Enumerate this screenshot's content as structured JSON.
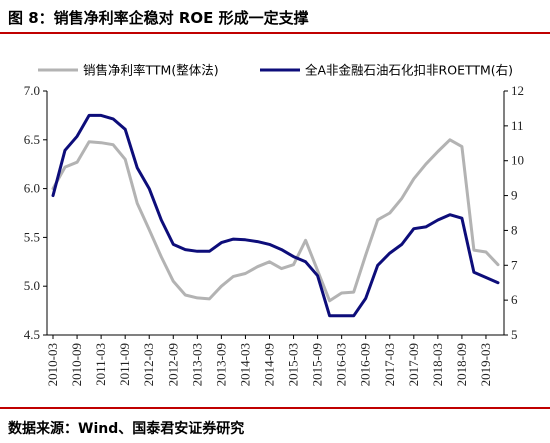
{
  "page": {
    "title": "图 8：销售净利率企稳对 ROE 形成一定支撑",
    "source": "数据来源：Wind、国泰君安证券研究"
  },
  "chart_data": {
    "type": "line",
    "title": "图 8：销售净利率企稳对 ROE 形成一定支撑",
    "xlabel": "",
    "ylabel": "",
    "x": [
      "2010-03",
      "2010-06",
      "2010-09",
      "2010-12",
      "2011-03",
      "2011-06",
      "2011-09",
      "2011-12",
      "2012-03",
      "2012-06",
      "2012-09",
      "2012-12",
      "2013-03",
      "2013-06",
      "2013-09",
      "2013-12",
      "2014-03",
      "2014-06",
      "2014-09",
      "2014-12",
      "2015-03",
      "2015-06",
      "2015-09",
      "2015-12",
      "2016-03",
      "2016-06",
      "2016-09",
      "2016-12",
      "2017-03",
      "2017-06",
      "2017-09",
      "2017-12",
      "2018-03",
      "2018-06",
      "2018-09",
      "2018-12",
      "2019-03",
      "2019-06"
    ],
    "x_tick_labels": [
      "2010-03",
      "2010-09",
      "2011-03",
      "2011-09",
      "2012-03",
      "2012-09",
      "2013-03",
      "2013-09",
      "2014-03",
      "2014-09",
      "2015-03",
      "2015-09",
      "2016-03",
      "2016-09",
      "2017-03",
      "2017-09",
      "2018-03",
      "2018-09",
      "2019-03"
    ],
    "ylim_left": [
      4.5,
      7.0
    ],
    "yticks_left": [
      "4.5",
      "5.0",
      "5.5",
      "6.0",
      "6.5",
      "7.0"
    ],
    "ylim_right": [
      5,
      12
    ],
    "yticks_right": [
      "5",
      "6",
      "7",
      "8",
      "9",
      "10",
      "11",
      "12"
    ],
    "grid": false,
    "legend_position": "top",
    "series": [
      {
        "name": "销售净利率TTM(整体法)",
        "axis": "left",
        "color": "#b3b3b3",
        "values": [
          6.0,
          6.22,
          6.27,
          6.48,
          6.47,
          6.45,
          6.3,
          5.85,
          5.58,
          5.3,
          5.05,
          4.91,
          4.88,
          4.87,
          5.0,
          5.1,
          5.13,
          5.2,
          5.25,
          5.18,
          5.22,
          5.47,
          5.16,
          4.85,
          4.93,
          4.94,
          5.32,
          5.68,
          5.75,
          5.9,
          6.1,
          6.25,
          6.38,
          6.5,
          6.43,
          5.37,
          5.35,
          5.22
        ]
      },
      {
        "name": "全A非金融石油石化扣非ROETTM(右)",
        "axis": "right",
        "color": "#0d0d7a",
        "values": [
          9.0,
          10.3,
          10.7,
          11.3,
          11.3,
          11.2,
          10.9,
          9.8,
          9.2,
          8.3,
          7.6,
          7.45,
          7.4,
          7.4,
          7.65,
          7.75,
          7.73,
          7.68,
          7.6,
          7.45,
          7.25,
          7.1,
          6.7,
          5.55,
          5.55,
          5.55,
          6.05,
          7.0,
          7.35,
          7.6,
          8.05,
          8.1,
          8.3,
          8.45,
          8.35,
          6.8,
          6.65,
          6.5
        ]
      }
    ]
  }
}
